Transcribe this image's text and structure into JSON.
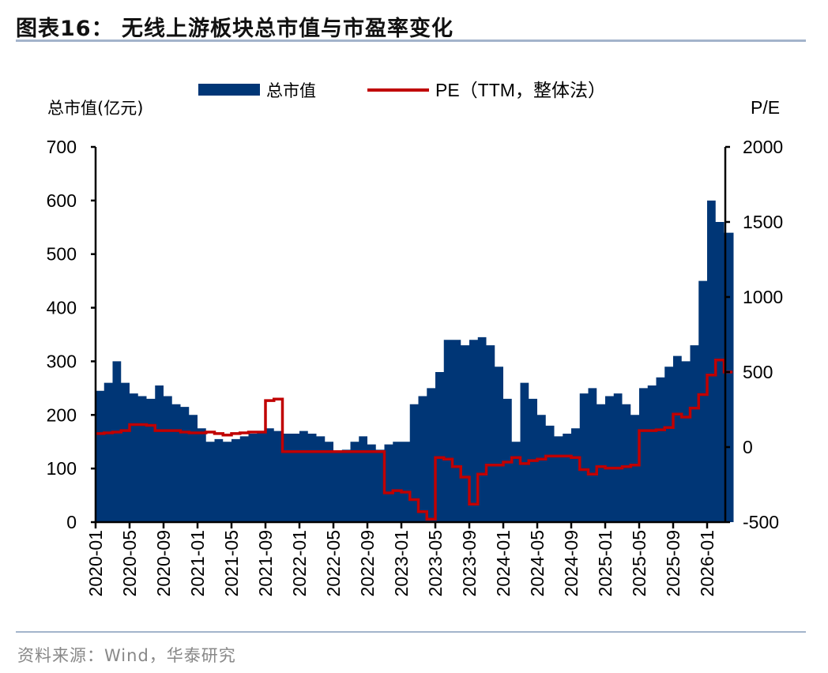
{
  "title": "图表16：  无线上游板块总市值与市盈率变化",
  "source": "资料来源：Wind，华泰研究",
  "chart_data": {
    "type": "area+line",
    "title": "无线上游板块总市值与市盈率变化",
    "ylabel": "总市值(亿元)",
    "y2label": "P/E",
    "ylim": [
      0,
      700
    ],
    "y2lim": [
      -500,
      2000
    ],
    "yticks": [
      0,
      100,
      200,
      300,
      400,
      500,
      600,
      700
    ],
    "y2ticks": [
      -500,
      0,
      500,
      1000,
      1500,
      2000
    ],
    "xticks": [
      "2020-01",
      "2020-05",
      "2020-09",
      "2021-01",
      "2021-05",
      "2021-09",
      "2022-01",
      "2022-05",
      "2022-09",
      "2023-01",
      "2023-05",
      "2023-09",
      "2024-01",
      "2024-05",
      "2024-09",
      "2025-01",
      "2025-05",
      "2025-09",
      "2026-01"
    ],
    "legend": {
      "position": "top",
      "entries": [
        "总市值",
        "PE（TTM，整体法）"
      ]
    },
    "colors": {
      "market_cap": "#003676",
      "pe": "#c00000"
    },
    "x": [
      "2020-01",
      "2020-02",
      "2020-03",
      "2020-04",
      "2020-05",
      "2020-06",
      "2020-07",
      "2020-08",
      "2020-09",
      "2020-10",
      "2020-11",
      "2020-12",
      "2021-01",
      "2021-02",
      "2021-03",
      "2021-04",
      "2021-05",
      "2021-06",
      "2021-07",
      "2021-08",
      "2021-09",
      "2021-10",
      "2021-11",
      "2021-12",
      "2022-01",
      "2022-02",
      "2022-03",
      "2022-04",
      "2022-05",
      "2022-06",
      "2022-07",
      "2022-08",
      "2022-09",
      "2022-10",
      "2022-11",
      "2022-12",
      "2023-01",
      "2023-02",
      "2023-03",
      "2023-04",
      "2023-05",
      "2023-06",
      "2023-07",
      "2023-08",
      "2023-09",
      "2023-10",
      "2023-11",
      "2023-12",
      "2024-01",
      "2024-02",
      "2024-03",
      "2024-04",
      "2024-05",
      "2024-06",
      "2024-07",
      "2024-08",
      "2024-09",
      "2024-10",
      "2024-11",
      "2024-12",
      "2025-01",
      "2025-02",
      "2025-03",
      "2025-04",
      "2025-05",
      "2025-06",
      "2025-07",
      "2025-08",
      "2025-09",
      "2025-10",
      "2025-11",
      "2025-12",
      "2026-01",
      "2026-02",
      "2026-03"
    ],
    "series": [
      {
        "name": "总市值",
        "type": "area",
        "axis": "left",
        "values": [
          245,
          260,
          300,
          260,
          240,
          235,
          230,
          255,
          235,
          220,
          215,
          200,
          175,
          150,
          155,
          150,
          155,
          160,
          165,
          170,
          175,
          170,
          165,
          165,
          170,
          165,
          160,
          150,
          130,
          135,
          150,
          160,
          145,
          135,
          145,
          150,
          150,
          220,
          235,
          250,
          280,
          340,
          340,
          330,
          340,
          345,
          330,
          290,
          230,
          150,
          260,
          230,
          200,
          180,
          160,
          165,
          175,
          240,
          250,
          220,
          235,
          240,
          220,
          200,
          250,
          255,
          270,
          290,
          310,
          300,
          330,
          450,
          600,
          560,
          540
        ]
      },
      {
        "name": "PE（TTM，整体法）",
        "type": "line",
        "axis": "right",
        "values": [
          90,
          95,
          100,
          110,
          150,
          150,
          145,
          110,
          110,
          110,
          100,
          95,
          95,
          100,
          90,
          80,
          90,
          95,
          100,
          100,
          310,
          320,
          -30,
          -30,
          -30,
          -30,
          -30,
          -30,
          -30,
          -30,
          -30,
          -30,
          -30,
          -30,
          -305,
          -290,
          -300,
          -350,
          -430,
          -480,
          -70,
          -80,
          -130,
          -200,
          -380,
          -180,
          -120,
          -120,
          -100,
          -70,
          -110,
          -90,
          -80,
          -60,
          -60,
          -60,
          -70,
          -150,
          -180,
          -130,
          -140,
          -140,
          -130,
          -120,
          110,
          110,
          115,
          130,
          220,
          200,
          260,
          350,
          480,
          580,
          500
        ]
      }
    ]
  }
}
